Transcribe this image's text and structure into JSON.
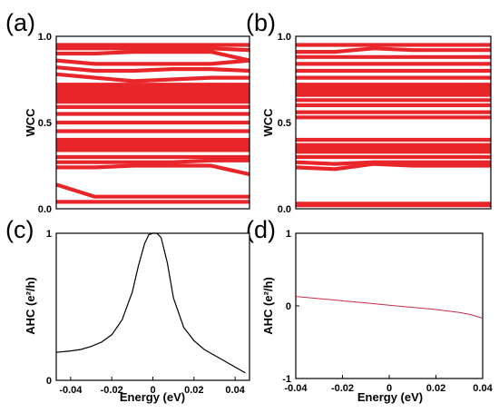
{
  "chart_data": [
    {
      "panel": "(a)",
      "type": "line",
      "ylabel": "WCC",
      "ylim": [
        0,
        1
      ],
      "yticks": [
        "1.0",
        "0.5",
        "0.0"
      ],
      "color": "#e8262a",
      "series_shape": "bands",
      "bands": [
        [
          0.95,
          0.95,
          0.95,
          0.95,
          0.95,
          0.95
        ],
        [
          0.93,
          0.93,
          0.93,
          0.93,
          0.93,
          0.92
        ],
        [
          0.9,
          0.9,
          0.91,
          0.91,
          0.91,
          0.86
        ],
        [
          0.86,
          0.84,
          0.84,
          0.84,
          0.84,
          0.86
        ],
        [
          0.82,
          0.8,
          0.8,
          0.81,
          0.81,
          0.8
        ],
        [
          0.78,
          0.76,
          0.74,
          0.75,
          0.76,
          0.76
        ],
        [
          0.72,
          0.72,
          0.72,
          0.72,
          0.72,
          0.72
        ],
        [
          0.7,
          0.7,
          0.7,
          0.7,
          0.7,
          0.7
        ],
        [
          0.68,
          0.68,
          0.68,
          0.68,
          0.68,
          0.68
        ],
        [
          0.66,
          0.66,
          0.66,
          0.66,
          0.66,
          0.66
        ],
        [
          0.64,
          0.64,
          0.64,
          0.64,
          0.64,
          0.64
        ],
        [
          0.62,
          0.62,
          0.62,
          0.62,
          0.62,
          0.62
        ],
        [
          0.59,
          0.59,
          0.59,
          0.59,
          0.59,
          0.59
        ],
        [
          0.55,
          0.55,
          0.55,
          0.55,
          0.55,
          0.55
        ],
        [
          0.5,
          0.5,
          0.5,
          0.5,
          0.5,
          0.5
        ],
        [
          0.45,
          0.45,
          0.45,
          0.45,
          0.45,
          0.45
        ],
        [
          0.4,
          0.4,
          0.4,
          0.4,
          0.4,
          0.4
        ],
        [
          0.38,
          0.38,
          0.38,
          0.38,
          0.38,
          0.38
        ],
        [
          0.36,
          0.36,
          0.36,
          0.36,
          0.36,
          0.36
        ],
        [
          0.34,
          0.34,
          0.34,
          0.34,
          0.34,
          0.34
        ],
        [
          0.3,
          0.3,
          0.3,
          0.3,
          0.3,
          0.3
        ],
        [
          0.27,
          0.27,
          0.27,
          0.27,
          0.28,
          0.28
        ],
        [
          0.24,
          0.24,
          0.25,
          0.25,
          0.25,
          0.2
        ],
        [
          0.14,
          0.07,
          0.07,
          0.07,
          0.07,
          0.07
        ],
        [
          0.04,
          0.04,
          0.04,
          0.04,
          0.04,
          0.04
        ]
      ]
    },
    {
      "panel": "(b)",
      "type": "line",
      "ylabel": "WCC",
      "ylim": [
        0,
        1
      ],
      "yticks": [
        "1.0",
        "0.5",
        "0.0"
      ],
      "color": "#e8262a",
      "series_shape": "bands",
      "bands": [
        [
          0.95,
          0.95,
          0.95,
          0.95,
          0.95,
          0.95
        ],
        [
          0.91,
          0.91,
          0.93,
          0.92,
          0.92,
          0.92
        ],
        [
          0.88,
          0.88,
          0.88,
          0.88,
          0.88,
          0.88
        ],
        [
          0.84,
          0.84,
          0.84,
          0.84,
          0.84,
          0.84
        ],
        [
          0.8,
          0.8,
          0.8,
          0.8,
          0.8,
          0.8
        ],
        [
          0.76,
          0.76,
          0.76,
          0.76,
          0.76,
          0.76
        ],
        [
          0.72,
          0.72,
          0.72,
          0.72,
          0.72,
          0.72
        ],
        [
          0.7,
          0.7,
          0.7,
          0.7,
          0.7,
          0.7
        ],
        [
          0.68,
          0.68,
          0.68,
          0.68,
          0.68,
          0.68
        ],
        [
          0.66,
          0.66,
          0.66,
          0.66,
          0.66,
          0.66
        ],
        [
          0.63,
          0.63,
          0.63,
          0.63,
          0.63,
          0.63
        ],
        [
          0.6,
          0.6,
          0.6,
          0.6,
          0.6,
          0.6
        ],
        [
          0.56,
          0.56,
          0.56,
          0.56,
          0.56,
          0.56
        ],
        [
          0.53,
          0.53,
          0.53,
          0.53,
          0.53,
          0.53
        ],
        [
          0.4,
          0.4,
          0.4,
          0.4,
          0.4,
          0.4
        ],
        [
          0.37,
          0.37,
          0.37,
          0.37,
          0.37,
          0.37
        ],
        [
          0.35,
          0.35,
          0.35,
          0.35,
          0.35,
          0.35
        ],
        [
          0.33,
          0.33,
          0.33,
          0.33,
          0.33,
          0.33
        ],
        [
          0.3,
          0.3,
          0.3,
          0.3,
          0.3,
          0.3
        ],
        [
          0.27,
          0.26,
          0.27,
          0.27,
          0.27,
          0.27
        ],
        [
          0.24,
          0.23,
          0.26,
          0.25,
          0.25,
          0.25
        ],
        [
          0.03,
          0.03,
          0.03,
          0.03,
          0.03,
          0.03
        ],
        [
          0.02,
          0.02,
          0.02,
          0.02,
          0.02,
          0.02
        ]
      ]
    },
    {
      "panel": "(c)",
      "type": "line",
      "xlabel": "Energy (eV)",
      "ylabel": "AHC (e²/h)",
      "xlim": [
        -0.047,
        0.047
      ],
      "ylim": [
        0,
        1
      ],
      "xticks": [
        "-0.04",
        "-0.02",
        "0",
        "0.02",
        "0.04"
      ],
      "xtick_values": [
        -0.04,
        -0.02,
        0,
        0.02,
        0.04
      ],
      "yticks": [
        "1",
        "0"
      ],
      "ytick_values": [
        1,
        0
      ],
      "color": "#000000",
      "x": [
        -0.047,
        -0.04,
        -0.035,
        -0.03,
        -0.025,
        -0.02,
        -0.015,
        -0.01,
        -0.007,
        -0.004,
        -0.002,
        0,
        0.002,
        0.004,
        0.007,
        0.01,
        0.015,
        0.02,
        0.025,
        0.03,
        0.035,
        0.04,
        0.045
      ],
      "y": [
        0.19,
        0.2,
        0.21,
        0.23,
        0.26,
        0.31,
        0.41,
        0.6,
        0.78,
        0.93,
        0.99,
        1.0,
        1.0,
        0.97,
        0.8,
        0.56,
        0.36,
        0.27,
        0.21,
        0.17,
        0.13,
        0.09,
        0.05
      ]
    },
    {
      "panel": "(d)",
      "type": "line",
      "xlabel": "Energy (eV)",
      "ylabel": "AHC (e²/h)",
      "xlim": [
        -0.04,
        0.04
      ],
      "ylim": [
        -1,
        1
      ],
      "xticks": [
        "-0.04",
        "-0.02",
        "0",
        "0.02",
        "0.04"
      ],
      "xtick_values": [
        -0.04,
        -0.02,
        0,
        0.02,
        0.04
      ],
      "yticks": [
        "1",
        "0",
        "-1"
      ],
      "ytick_values": [
        1,
        0,
        -1
      ],
      "color": "#c0304a",
      "x": [
        -0.04,
        -0.03,
        -0.02,
        -0.01,
        0,
        0.01,
        0.02,
        0.03,
        0.035,
        0.04
      ],
      "y": [
        0.13,
        0.1,
        0.07,
        0.04,
        0.01,
        -0.02,
        -0.05,
        -0.09,
        -0.12,
        -0.17
      ]
    }
  ]
}
